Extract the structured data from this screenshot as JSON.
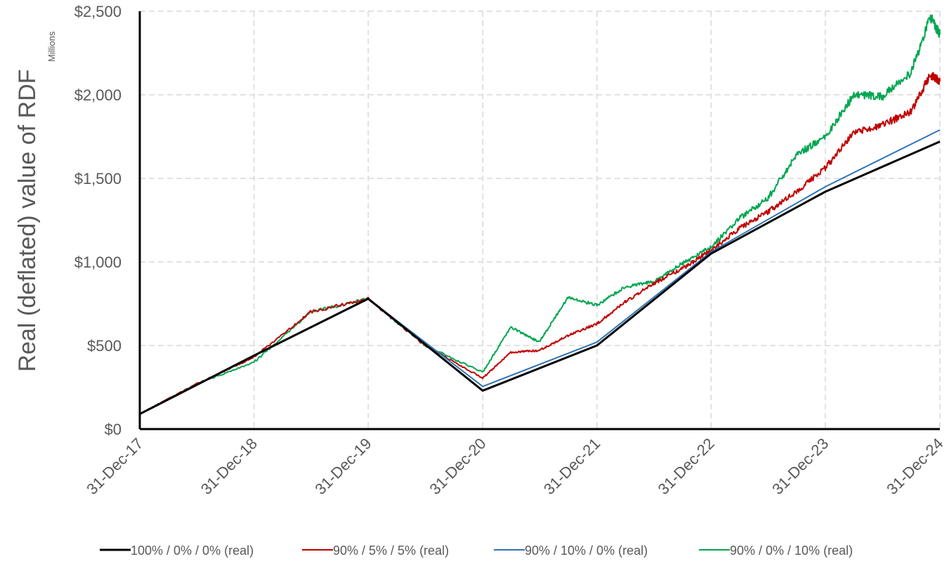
{
  "chart_data": {
    "type": "line",
    "ylabel": "Real (deflated) value of RDF",
    "yunit": "Millions",
    "ylim": [
      0,
      2500
    ],
    "yticks": [
      {
        "value": 0,
        "label": "$0"
      },
      {
        "value": 500,
        "label": "$500"
      },
      {
        "value": 1000,
        "label": "$1,000"
      },
      {
        "value": 1500,
        "label": "$1,500"
      },
      {
        "value": 2000,
        "label": "$2,000"
      },
      {
        "value": 2500,
        "label": "$2,500"
      }
    ],
    "xlim": [
      "2017-12-31",
      "2024-12-31"
    ],
    "xticks": [
      {
        "date": "2017-12-31",
        "label": "31-Dec-17"
      },
      {
        "date": "2018-12-31",
        "label": "31-Dec-18"
      },
      {
        "date": "2019-12-31",
        "label": "31-Dec-19"
      },
      {
        "date": "2020-12-31",
        "label": "31-Dec-20"
      },
      {
        "date": "2021-12-31",
        "label": "31-Dec-21"
      },
      {
        "date": "2022-12-31",
        "label": "31-Dec-22"
      },
      {
        "date": "2023-12-31",
        "label": "31-Dec-23"
      },
      {
        "date": "2024-12-31",
        "label": "31-Dec-24"
      }
    ],
    "grid": true,
    "legend_position": "bottom",
    "series": [
      {
        "name": "100% / 0% / 0% (real)",
        "color": "#000000",
        "points": [
          [
            "2017-12-31",
            90
          ],
          [
            "2018-12-31",
            440
          ],
          [
            "2019-12-31",
            780
          ],
          [
            "2020-12-31",
            230
          ],
          [
            "2021-12-31",
            500
          ],
          [
            "2022-12-31",
            1050
          ],
          [
            "2023-12-31",
            1420
          ],
          [
            "2024-12-31",
            1720
          ]
        ]
      },
      {
        "name": "90% / 5% / 5% (real)",
        "color": "#c00000",
        "points": [
          [
            "2017-12-31",
            90
          ],
          [
            "2018-06-30",
            270
          ],
          [
            "2018-12-31",
            430
          ],
          [
            "2019-06-30",
            700
          ],
          [
            "2019-12-31",
            780
          ],
          [
            "2020-06-30",
            500
          ],
          [
            "2020-12-31",
            305
          ],
          [
            "2021-03-31",
            460
          ],
          [
            "2021-06-30",
            470
          ],
          [
            "2021-09-30",
            560
          ],
          [
            "2021-12-31",
            630
          ],
          [
            "2022-03-31",
            760
          ],
          [
            "2022-06-30",
            870
          ],
          [
            "2022-09-30",
            960
          ],
          [
            "2022-12-31",
            1070
          ],
          [
            "2023-03-31",
            1200
          ],
          [
            "2023-06-30",
            1300
          ],
          [
            "2023-09-30",
            1420
          ],
          [
            "2023-12-31",
            1560
          ],
          [
            "2024-03-31",
            1780
          ],
          [
            "2024-06-30",
            1820
          ],
          [
            "2024-09-30",
            1900
          ],
          [
            "2024-11-30",
            2120
          ],
          [
            "2024-12-31",
            2080
          ]
        ]
      },
      {
        "name": "90% / 10% / 0% (real)",
        "color": "#2e75b6",
        "points": [
          [
            "2017-12-31",
            90
          ],
          [
            "2018-12-31",
            440
          ],
          [
            "2019-12-31",
            780
          ],
          [
            "2020-12-31",
            255
          ],
          [
            "2021-12-31",
            520
          ],
          [
            "2022-12-31",
            1060
          ],
          [
            "2023-12-31",
            1450
          ],
          [
            "2024-12-31",
            1790
          ]
        ]
      },
      {
        "name": "90% / 0% / 10% (real)",
        "color": "#00a650",
        "points": [
          [
            "2017-12-31",
            90
          ],
          [
            "2018-06-30",
            270
          ],
          [
            "2018-12-31",
            400
          ],
          [
            "2019-06-30",
            700
          ],
          [
            "2019-12-31",
            780
          ],
          [
            "2020-06-30",
            500
          ],
          [
            "2020-12-31",
            340
          ],
          [
            "2021-03-31",
            610
          ],
          [
            "2021-06-30",
            520
          ],
          [
            "2021-09-30",
            790
          ],
          [
            "2021-12-31",
            740
          ],
          [
            "2022-03-31",
            850
          ],
          [
            "2022-06-30",
            880
          ],
          [
            "2022-09-30",
            990
          ],
          [
            "2022-12-31",
            1090
          ],
          [
            "2023-03-31",
            1260
          ],
          [
            "2023-06-30",
            1380
          ],
          [
            "2023-09-30",
            1640
          ],
          [
            "2023-12-31",
            1750
          ],
          [
            "2024-03-31",
            2000
          ],
          [
            "2024-06-30",
            1990
          ],
          [
            "2024-09-30",
            2130
          ],
          [
            "2024-11-30",
            2470
          ],
          [
            "2024-12-31",
            2360
          ]
        ]
      }
    ]
  }
}
